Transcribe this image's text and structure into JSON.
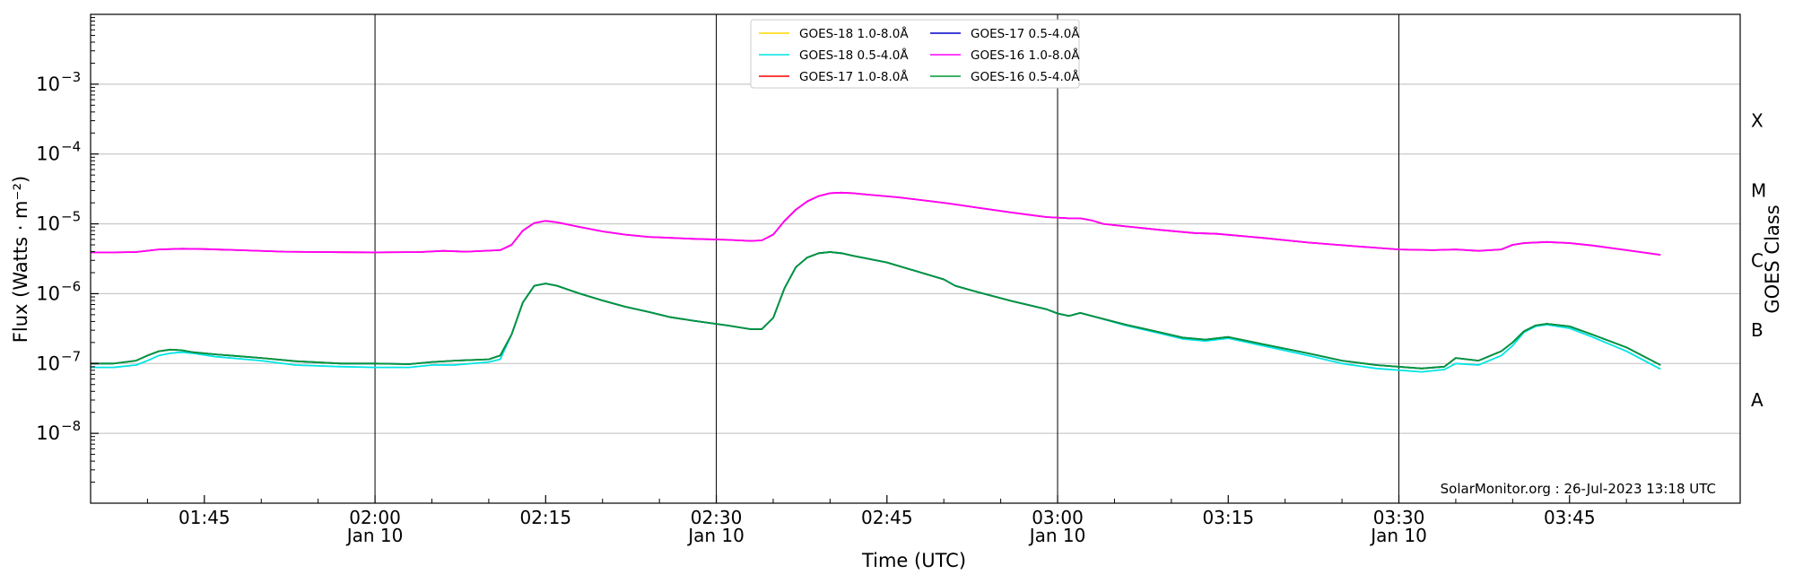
{
  "chart_data": {
    "type": "line",
    "xlabel": "Time (UTC)",
    "ylabel": "Flux (Watts · m⁻²)",
    "ylabel_right": "GOES Class",
    "credit": "SolarMonitor.org : 26-Jul-2023 13:18 UTC",
    "x_unit": "UTC time (HH:MM), 10 Jan",
    "xlim": [
      "01:35",
      "04:00"
    ],
    "ylog": true,
    "ylim": [
      1e-09,
      0.01
    ],
    "y_ticks": [
      {
        "value": 1e-08,
        "base": "10",
        "exp": "−8"
      },
      {
        "value": 1e-07,
        "base": "10",
        "exp": "−7"
      },
      {
        "value": 1e-06,
        "base": "10",
        "exp": "−6"
      },
      {
        "value": 1e-05,
        "base": "10",
        "exp": "−5"
      },
      {
        "value": 0.0001,
        "base": "10",
        "exp": "−4"
      },
      {
        "value": 0.001,
        "base": "10",
        "exp": "−3"
      }
    ],
    "x_ticks": [
      {
        "t": "01:45",
        "label": "01:45",
        "sub": ""
      },
      {
        "t": "02:00",
        "label": "02:00",
        "sub": "Jan 10"
      },
      {
        "t": "02:15",
        "label": "02:15",
        "sub": ""
      },
      {
        "t": "02:30",
        "label": "02:30",
        "sub": "Jan 10"
      },
      {
        "t": "02:45",
        "label": "02:45",
        "sub": ""
      },
      {
        "t": "03:00",
        "label": "03:00",
        "sub": "Jan 10"
      },
      {
        "t": "03:15",
        "label": "03:15",
        "sub": ""
      },
      {
        "t": "03:30",
        "label": "03:30",
        "sub": "Jan 10"
      },
      {
        "t": "03:45",
        "label": "03:45",
        "sub": ""
      }
    ],
    "vlines": [
      "02:00",
      "02:30",
      "03:00",
      "03:30"
    ],
    "goes_classes": [
      {
        "label": "A",
        "value": 3e-08
      },
      {
        "label": "B",
        "value": 3e-07
      },
      {
        "label": "C",
        "value": 3e-06
      },
      {
        "label": "M",
        "value": 3e-05
      },
      {
        "label": "X",
        "value": 0.0003
      }
    ],
    "grid": "horizontal",
    "legend_position": "top-center",
    "series": [
      {
        "name": "GOES-18 1.0-8.0Å",
        "color": "#ffd700",
        "show_line": false,
        "x": [],
        "y": []
      },
      {
        "name": "GOES-17 1.0-8.0Å",
        "color": "#ff0000",
        "show_line": true,
        "x": [
          "01:35",
          "01:37",
          "01:39",
          "01:41",
          "01:43",
          "01:45",
          "01:48",
          "01:52",
          "01:55",
          "02:00",
          "02:04",
          "02:06",
          "02:08",
          "02:11",
          "02:12",
          "02:13",
          "02:14",
          "02:15",
          "02:16",
          "02:18",
          "02:20",
          "02:22",
          "02:24",
          "02:26",
          "02:28",
          "02:31",
          "02:33",
          "02:34",
          "02:35",
          "02:36",
          "02:37",
          "02:38",
          "02:39",
          "02:40",
          "02:41",
          "02:42",
          "02:43",
          "02:46",
          "02:50",
          "02:51",
          "02:53",
          "02:56",
          "02:59",
          "03:01",
          "03:02",
          "03:03",
          "03:04",
          "03:06",
          "03:09",
          "03:12",
          "03:14",
          "03:18",
          "03:22",
          "03:26",
          "03:30",
          "03:33",
          "03:35",
          "03:37",
          "03:39",
          "03:40",
          "03:41",
          "03:43",
          "03:45",
          "03:47",
          "03:50",
          "03:53"
        ],
        "y": [
          3.9e-06,
          3.9e-06,
          3.95e-06,
          4.3e-06,
          4.4e-06,
          4.35e-06,
          4.2e-06,
          4e-06,
          3.95e-06,
          3.9e-06,
          3.95e-06,
          4.1e-06,
          4e-06,
          4.2e-06,
          5e-06,
          8e-06,
          1.03e-05,
          1.1e-05,
          1.05e-05,
          9e-06,
          7.8e-06,
          7e-06,
          6.5e-06,
          6.3e-06,
          6.1e-06,
          5.9e-06,
          5.7e-06,
          5.8e-06,
          7e-06,
          1.1e-05,
          1.6e-05,
          2.1e-05,
          2.5e-05,
          2.75e-05,
          2.8e-05,
          2.75e-05,
          2.65e-05,
          2.4e-05,
          2e-05,
          1.9e-05,
          1.7e-05,
          1.45e-05,
          1.25e-05,
          1.2e-05,
          1.2e-05,
          1.12e-05,
          1e-05,
          9.2e-06,
          8.2e-06,
          7.4e-06,
          7.2e-06,
          6.3e-06,
          5.4e-06,
          4.8e-06,
          4.3e-06,
          4.2e-06,
          4.3e-06,
          4.1e-06,
          4.3e-06,
          5e-06,
          5.3e-06,
          5.5e-06,
          5.3e-06,
          4.9e-06,
          4.2e-06,
          3.6e-06
        ]
      },
      {
        "name": "GOES-16 1.0-8.0Å",
        "color": "#ff00ff",
        "show_line": true,
        "x": [
          "01:35",
          "01:37",
          "01:39",
          "01:41",
          "01:43",
          "01:45",
          "01:48",
          "01:52",
          "01:55",
          "02:00",
          "02:04",
          "02:06",
          "02:08",
          "02:11",
          "02:12",
          "02:13",
          "02:14",
          "02:15",
          "02:16",
          "02:18",
          "02:20",
          "02:22",
          "02:24",
          "02:26",
          "02:28",
          "02:31",
          "02:33",
          "02:34",
          "02:35",
          "02:36",
          "02:37",
          "02:38",
          "02:39",
          "02:40",
          "02:41",
          "02:42",
          "02:43",
          "02:46",
          "02:50",
          "02:51",
          "02:53",
          "02:56",
          "02:59",
          "03:01",
          "03:02",
          "03:03",
          "03:04",
          "03:06",
          "03:09",
          "03:12",
          "03:14",
          "03:18",
          "03:22",
          "03:26",
          "03:30",
          "03:33",
          "03:35",
          "03:37",
          "03:39",
          "03:40",
          "03:41",
          "03:43",
          "03:45",
          "03:47",
          "03:50",
          "03:53"
        ],
        "y": [
          3.9e-06,
          3.9e-06,
          3.95e-06,
          4.3e-06,
          4.4e-06,
          4.35e-06,
          4.2e-06,
          4e-06,
          3.95e-06,
          3.9e-06,
          3.95e-06,
          4.1e-06,
          4e-06,
          4.2e-06,
          5e-06,
          8e-06,
          1.03e-05,
          1.1e-05,
          1.05e-05,
          9e-06,
          7.8e-06,
          7e-06,
          6.5e-06,
          6.3e-06,
          6.1e-06,
          5.9e-06,
          5.7e-06,
          5.8e-06,
          7e-06,
          1.1e-05,
          1.6e-05,
          2.1e-05,
          2.5e-05,
          2.75e-05,
          2.8e-05,
          2.75e-05,
          2.65e-05,
          2.4e-05,
          2e-05,
          1.9e-05,
          1.7e-05,
          1.45e-05,
          1.25e-05,
          1.2e-05,
          1.2e-05,
          1.12e-05,
          1e-05,
          9.2e-06,
          8.2e-06,
          7.4e-06,
          7.2e-06,
          6.3e-06,
          5.4e-06,
          4.8e-06,
          4.3e-06,
          4.2e-06,
          4.3e-06,
          4.1e-06,
          4.3e-06,
          5e-06,
          5.3e-06,
          5.5e-06,
          5.3e-06,
          4.9e-06,
          4.2e-06,
          3.6e-06
        ]
      },
      {
        "name": "GOES-18 0.5-4.0Å",
        "color": "#00e5e5",
        "show_line": true,
        "x": [
          "01:35",
          "01:37",
          "01:39",
          "01:40",
          "01:41",
          "01:42",
          "01:43",
          "01:44",
          "01:46",
          "01:50",
          "01:53",
          "01:57",
          "02:00",
          "02:03",
          "02:05",
          "02:07",
          "02:10",
          "02:11",
          "02:12",
          "02:13",
          "02:14",
          "02:15",
          "02:16",
          "02:18",
          "02:20",
          "02:22",
          "02:24",
          "02:26",
          "02:28",
          "02:31",
          "02:33",
          "02:34",
          "02:35",
          "02:36",
          "02:37",
          "02:38",
          "02:39",
          "02:40",
          "02:41",
          "02:42",
          "02:45",
          "02:50",
          "02:51",
          "02:53",
          "02:56",
          "02:59",
          "03:00",
          "03:01",
          "03:02",
          "03:03",
          "03:06",
          "03:09",
          "03:11",
          "03:13",
          "03:15",
          "03:18",
          "03:22",
          "03:25",
          "03:28",
          "03:32",
          "03:34",
          "03:35",
          "03:37",
          "03:39",
          "03:40",
          "03:41",
          "03:42",
          "03:43",
          "03:45",
          "03:47",
          "03:50",
          "03:53"
        ],
        "y": [
          8.8e-08,
          8.8e-08,
          9.5e-08,
          1.1e-07,
          1.3e-07,
          1.4e-07,
          1.45e-07,
          1.4e-07,
          1.25e-07,
          1.1e-07,
          9.5e-08,
          9e-08,
          8.8e-08,
          8.8e-08,
          9.5e-08,
          9.5e-08,
          1.05e-07,
          1.15e-07,
          2.6e-07,
          7.5e-07,
          1.3e-06,
          1.4e-06,
          1.3e-06,
          1e-06,
          8e-07,
          6.5e-07,
          5.5e-07,
          4.6e-07,
          4.1e-07,
          3.5e-07,
          3.1e-07,
          3.1e-07,
          4.5e-07,
          1.2e-06,
          2.4e-06,
          3.3e-06,
          3.8e-06,
          3.95e-06,
          3.8e-06,
          3.5e-06,
          2.8e-06,
          1.6e-06,
          1.3e-06,
          1.05e-06,
          7.8e-07,
          6e-07,
          5.2e-07,
          4.8e-07,
          5.3e-07,
          4.8e-07,
          3.5e-07,
          2.7e-07,
          2.25e-07,
          2.1e-07,
          2.3e-07,
          1.8e-07,
          1.3e-07,
          1e-07,
          8.5e-08,
          7.6e-08,
          8.2e-08,
          1e-07,
          9.5e-08,
          1.3e-07,
          1.8e-07,
          2.8e-07,
          3.4e-07,
          3.6e-07,
          3.2e-07,
          2.4e-07,
          1.5e-07,
          8.3e-08
        ]
      },
      {
        "name": "GOES-17 0.5-4.0Å",
        "color": "#0000cc",
        "show_line": true,
        "x": [
          "01:35",
          "01:37",
          "01:39",
          "01:40",
          "01:41",
          "01:42",
          "01:43",
          "01:44",
          "01:46",
          "01:50",
          "01:53",
          "01:57",
          "02:00",
          "02:03",
          "02:05",
          "02:07",
          "02:10",
          "02:11",
          "02:12",
          "02:13",
          "02:14",
          "02:15",
          "02:16",
          "02:18",
          "02:20",
          "02:22",
          "02:24",
          "02:26",
          "02:28",
          "02:31",
          "02:33",
          "02:34",
          "02:35",
          "02:36",
          "02:37",
          "02:38",
          "02:39",
          "02:40",
          "02:41",
          "02:42",
          "02:45",
          "02:50",
          "02:51",
          "02:53",
          "02:56",
          "02:59",
          "03:00",
          "03:01",
          "03:02",
          "03:03",
          "03:06",
          "03:09",
          "03:11",
          "03:13",
          "03:15",
          "03:18",
          "03:22",
          "03:25",
          "03:28",
          "03:32",
          "03:34",
          "03:35",
          "03:37",
          "03:39",
          "03:40",
          "03:41",
          "03:42",
          "03:43",
          "03:45",
          "03:47",
          "03:50",
          "03:53"
        ],
        "y": [
          1e-07,
          1e-07,
          1.1e-07,
          1.3e-07,
          1.5e-07,
          1.58e-07,
          1.55e-07,
          1.45e-07,
          1.35e-07,
          1.2e-07,
          1.08e-07,
          1e-07,
          1e-07,
          9.8e-08,
          1.05e-07,
          1.1e-07,
          1.15e-07,
          1.3e-07,
          2.6e-07,
          7.5e-07,
          1.3e-06,
          1.4e-06,
          1.3e-06,
          1e-06,
          8e-07,
          6.5e-07,
          5.5e-07,
          4.6e-07,
          4.1e-07,
          3.5e-07,
          3.1e-07,
          3.1e-07,
          4.5e-07,
          1.2e-06,
          2.4e-06,
          3.3e-06,
          3.8e-06,
          3.95e-06,
          3.8e-06,
          3.5e-06,
          2.8e-06,
          1.6e-06,
          1.3e-06,
          1.05e-06,
          7.8e-07,
          6e-07,
          5.2e-07,
          4.8e-07,
          5.3e-07,
          4.8e-07,
          3.6e-07,
          2.8e-07,
          2.35e-07,
          2.2e-07,
          2.4e-07,
          1.9e-07,
          1.4e-07,
          1.1e-07,
          9.5e-08,
          8.5e-08,
          9e-08,
          1.2e-07,
          1.1e-07,
          1.5e-07,
          2e-07,
          2.9e-07,
          3.5e-07,
          3.7e-07,
          3.4e-07,
          2.6e-07,
          1.7e-07,
          9.5e-08
        ]
      },
      {
        "name": "GOES-16 0.5-4.0Å",
        "color": "#009933",
        "show_line": true,
        "x": [
          "01:35",
          "01:37",
          "01:39",
          "01:40",
          "01:41",
          "01:42",
          "01:43",
          "01:44",
          "01:46",
          "01:50",
          "01:53",
          "01:57",
          "02:00",
          "02:03",
          "02:05",
          "02:07",
          "02:10",
          "02:11",
          "02:12",
          "02:13",
          "02:14",
          "02:15",
          "02:16",
          "02:18",
          "02:20",
          "02:22",
          "02:24",
          "02:26",
          "02:28",
          "02:31",
          "02:33",
          "02:34",
          "02:35",
          "02:36",
          "02:37",
          "02:38",
          "02:39",
          "02:40",
          "02:41",
          "02:42",
          "02:45",
          "02:50",
          "02:51",
          "02:53",
          "02:56",
          "02:59",
          "03:00",
          "03:01",
          "03:02",
          "03:03",
          "03:06",
          "03:09",
          "03:11",
          "03:13",
          "03:15",
          "03:18",
          "03:22",
          "03:25",
          "03:28",
          "03:32",
          "03:34",
          "03:35",
          "03:37",
          "03:39",
          "03:40",
          "03:41",
          "03:42",
          "03:43",
          "03:45",
          "03:47",
          "03:50",
          "03:53"
        ],
        "y": [
          1e-07,
          1e-07,
          1.1e-07,
          1.3e-07,
          1.5e-07,
          1.58e-07,
          1.55e-07,
          1.45e-07,
          1.35e-07,
          1.2e-07,
          1.08e-07,
          1e-07,
          1e-07,
          9.8e-08,
          1.05e-07,
          1.1e-07,
          1.15e-07,
          1.3e-07,
          2.6e-07,
          7.5e-07,
          1.3e-06,
          1.4e-06,
          1.3e-06,
          1e-06,
          8e-07,
          6.5e-07,
          5.5e-07,
          4.6e-07,
          4.1e-07,
          3.5e-07,
          3.1e-07,
          3.1e-07,
          4.5e-07,
          1.2e-06,
          2.4e-06,
          3.3e-06,
          3.8e-06,
          3.95e-06,
          3.8e-06,
          3.5e-06,
          2.8e-06,
          1.6e-06,
          1.3e-06,
          1.05e-06,
          7.8e-07,
          6e-07,
          5.2e-07,
          4.8e-07,
          5.3e-07,
          4.8e-07,
          3.6e-07,
          2.8e-07,
          2.35e-07,
          2.2e-07,
          2.4e-07,
          1.9e-07,
          1.4e-07,
          1.1e-07,
          9.5e-08,
          8.5e-08,
          9e-08,
          1.2e-07,
          1.1e-07,
          1.5e-07,
          2e-07,
          2.9e-07,
          3.5e-07,
          3.7e-07,
          3.4e-07,
          2.6e-07,
          1.7e-07,
          9.5e-08
        ]
      }
    ],
    "legend_order": [
      0,
      3,
      1,
      4,
      2,
      5
    ]
  }
}
